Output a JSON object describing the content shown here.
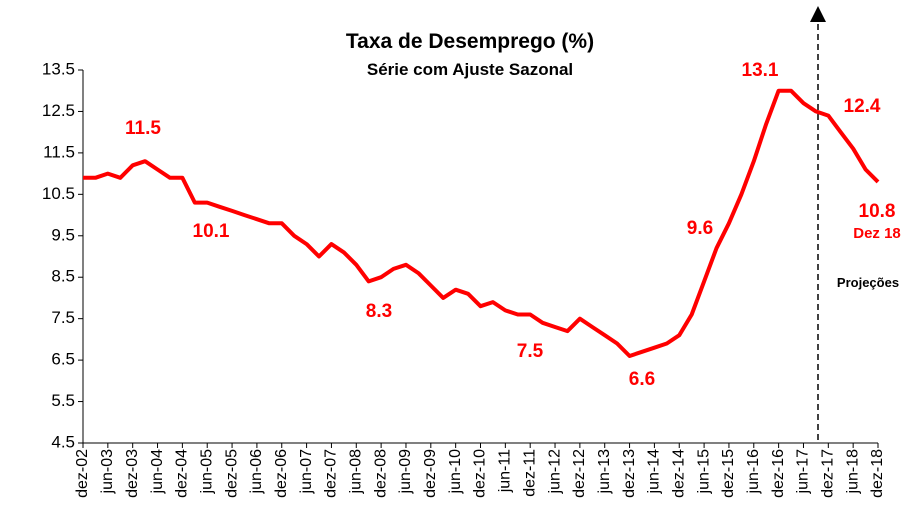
{
  "chart_data": {
    "type": "line",
    "title": "Taxa de Desemprego (%)",
    "subtitle": "Série com Ajuste Sazonal",
    "categories": [
      "dez-02",
      null,
      "jun-03",
      null,
      "dez-03",
      null,
      "jun-04",
      null,
      "dez-04",
      null,
      "jun-05",
      null,
      "dez-05",
      null,
      "jun-06",
      null,
      "dez-06",
      null,
      "jun-07",
      null,
      "dez-07",
      null,
      "jun-08",
      null,
      "dez-08",
      null,
      "jun-09",
      null,
      "dez-09",
      null,
      "jun-10",
      null,
      "dez-10",
      null,
      "jun-11",
      null,
      "dez-11",
      null,
      "jun-12",
      null,
      "dez-12",
      null,
      "jun-13",
      null,
      "dez-13",
      null,
      "jun-14",
      null,
      "dez-14",
      null,
      "jun-15",
      null,
      "dez-15",
      null,
      "jun-16",
      null,
      "dez-16",
      null,
      "jun-17",
      null,
      "dez-17",
      null,
      "jun-18",
      null,
      "dez-18"
    ],
    "series": [
      {
        "name": "Taxa de Desemprego",
        "color": "#ff0000",
        "values": [
          10.9,
          10.9,
          11.0,
          10.9,
          11.2,
          11.3,
          11.1,
          10.9,
          10.9,
          10.3,
          10.3,
          10.2,
          10.1,
          10.0,
          9.9,
          9.8,
          9.8,
          9.5,
          9.3,
          9.0,
          9.3,
          9.1,
          8.8,
          8.4,
          8.5,
          8.7,
          8.8,
          8.6,
          8.3,
          8.0,
          8.2,
          8.1,
          7.8,
          7.9,
          7.7,
          7.6,
          7.6,
          7.4,
          7.3,
          7.2,
          7.5,
          7.3,
          7.1,
          6.9,
          6.6,
          6.7,
          6.8,
          6.9,
          7.1,
          7.6,
          8.4,
          9.2,
          9.8,
          10.5,
          11.3,
          12.2,
          13.0,
          13.0,
          12.7,
          12.5,
          12.4,
          12.0,
          11.6,
          11.1,
          10.8
        ]
      }
    ],
    "ylim": [
      4.5,
      13.5
    ],
    "yticks": [
      4.5,
      5.5,
      6.5,
      7.5,
      8.5,
      9.5,
      10.5,
      11.5,
      12.5,
      13.5
    ],
    "annotations": [
      "11.5",
      "10.1",
      "8.3",
      "7.5",
      "6.6",
      "9.6",
      "13.1",
      "12.4",
      "10.8",
      "Dez 18",
      "Projeções"
    ],
    "grid": false
  }
}
